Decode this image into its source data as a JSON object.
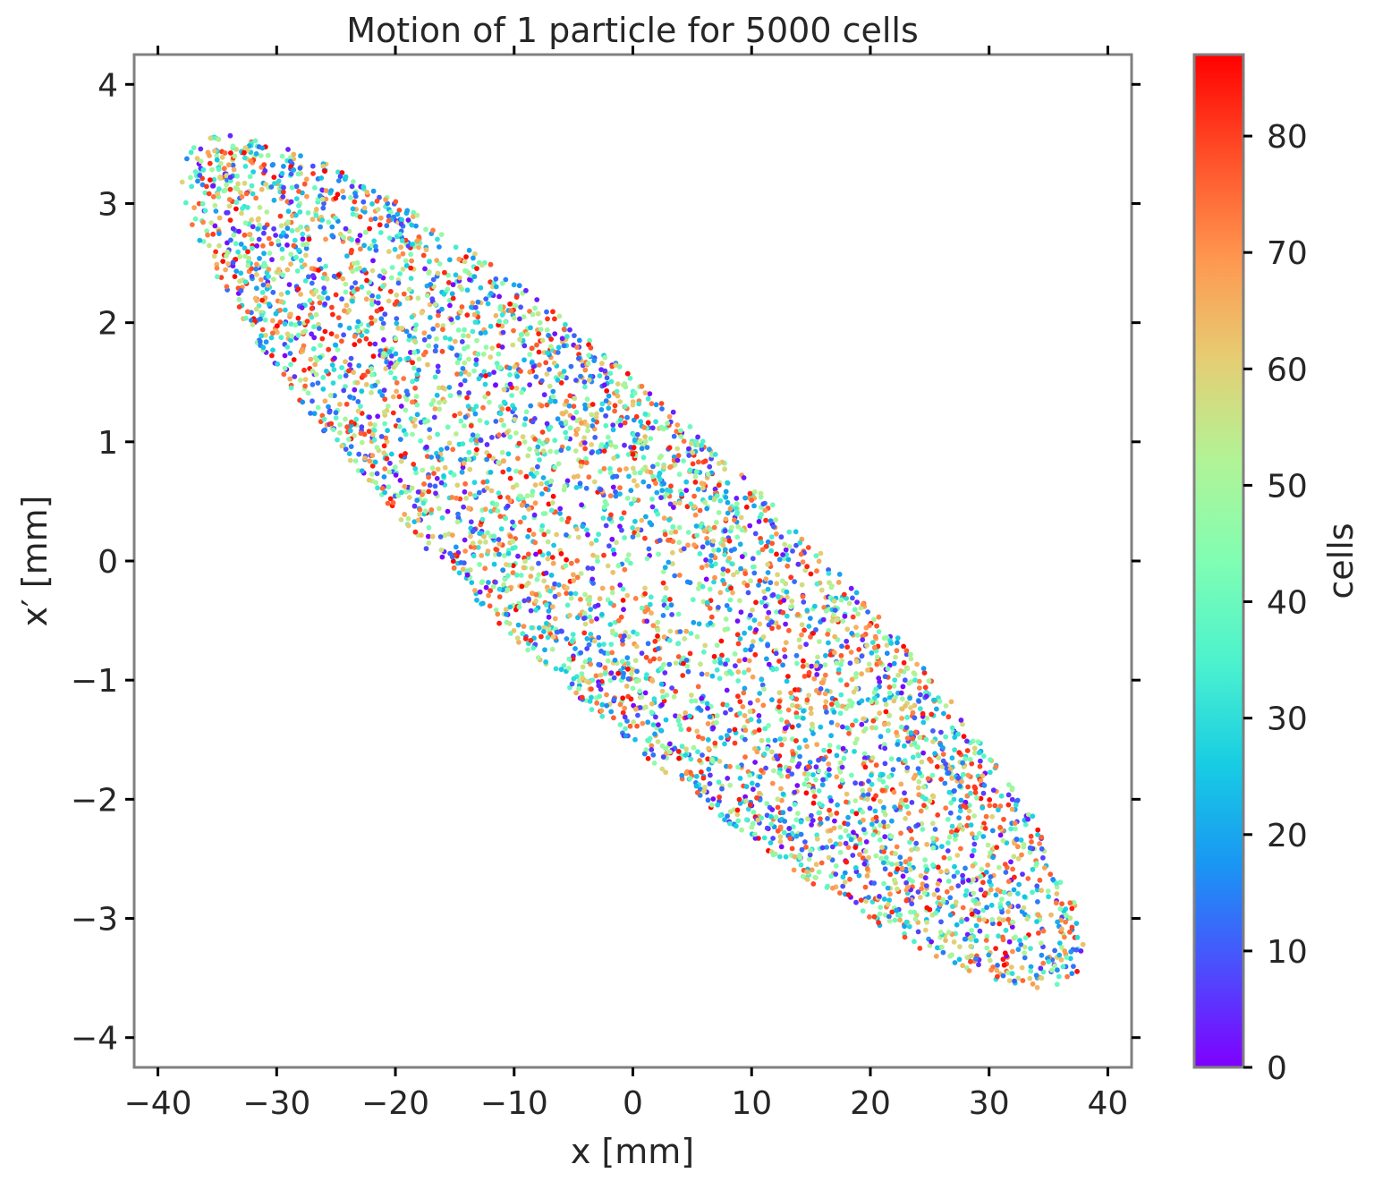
{
  "chart_data": {
    "type": "scatter",
    "title": "Motion of 1 particle for 5000 cells",
    "xlabel": "x [mm]",
    "ylabel": "x′ [mm]",
    "xlim": [
      -42,
      42
    ],
    "ylim": [
      -4.25,
      4.25
    ],
    "x_ticks": [
      {
        "value": -40,
        "label": "−40"
      },
      {
        "value": -30,
        "label": "−30"
      },
      {
        "value": -20,
        "label": "−20"
      },
      {
        "value": -10,
        "label": "−10"
      },
      {
        "value": 0,
        "label": "0"
      },
      {
        "value": 10,
        "label": "10"
      },
      {
        "value": 20,
        "label": "20"
      },
      {
        "value": 30,
        "label": "30"
      },
      {
        "value": 40,
        "label": "40"
      }
    ],
    "y_ticks": [
      {
        "value": 4,
        "label": "4"
      },
      {
        "value": 3,
        "label": "3"
      },
      {
        "value": 2,
        "label": "2"
      },
      {
        "value": 1,
        "label": "1"
      },
      {
        "value": 0,
        "label": "0"
      },
      {
        "value": -1,
        "label": "−1"
      },
      {
        "value": -2,
        "label": "−2"
      },
      {
        "value": -3,
        "label": "−3"
      },
      {
        "value": -4,
        "label": "−4"
      }
    ],
    "colorbar": {
      "label": "cells",
      "colormap": "rainbow",
      "range": [
        0,
        87
      ],
      "ticks": [
        {
          "value": 0,
          "label": "0"
        },
        {
          "value": 10,
          "label": "10"
        },
        {
          "value": 20,
          "label": "20"
        },
        {
          "value": 30,
          "label": "30"
        },
        {
          "value": 40,
          "label": "40"
        },
        {
          "value": 50,
          "label": "50"
        },
        {
          "value": 60,
          "label": "60"
        },
        {
          "value": 70,
          "label": "70"
        },
        {
          "value": 80,
          "label": "80"
        }
      ],
      "stops": [
        "#7f00ff",
        "#4b4ffd",
        "#1996f3",
        "#18cde3",
        "#4cf2ce",
        "#80feb3",
        "#b2f396",
        "#e6cd73",
        "#ff964f",
        "#ff4f28",
        "#ff0000"
      ]
    },
    "grid": false,
    "legend": "none",
    "distribution": {
      "description_shape": "tilted elliptical phase-space cloud",
      "x_range": [
        -38,
        38
      ],
      "y_range": [
        -3.9,
        3.9
      ],
      "slope": -0.085,
      "point_count": 5000
    },
    "frame_color": "#808080"
  }
}
